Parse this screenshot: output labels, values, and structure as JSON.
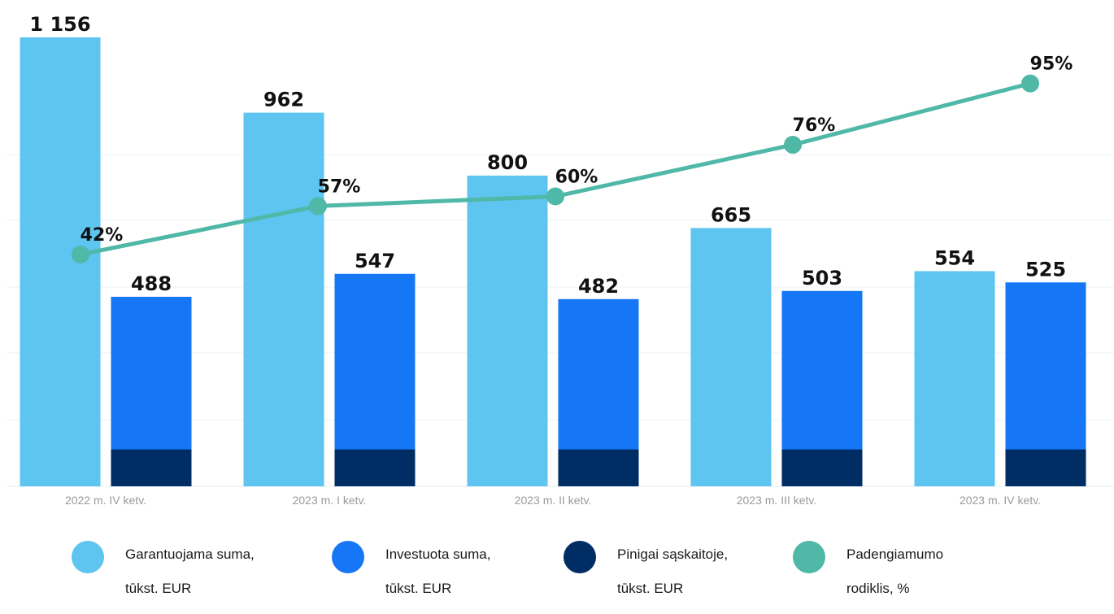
{
  "chart_data": {
    "type": "bar",
    "title": "",
    "xlabel": "",
    "ylabel": "",
    "categories": [
      "2022 m. IV ketv.",
      "2023 m. I ketv.",
      "2023 m. II ketv.",
      "2023 m. III ketv.",
      "2023 m. IV ketv."
    ],
    "ylim": [
      0,
      1160
    ],
    "grid": true,
    "legend_position": "bottom",
    "series": [
      {
        "name": "Garantuojama suma, tūkst. EUR",
        "type": "bar",
        "color": "#5ec4f0",
        "values": [
          1156,
          962,
          800,
          665,
          554
        ],
        "labels": [
          "1 156",
          "962",
          "800",
          "665",
          "554"
        ]
      },
      {
        "name": "Investuota suma, tūkst. EUR",
        "type": "bar",
        "color": "#1577f5",
        "values": [
          488,
          547,
          482,
          503,
          525
        ],
        "labels": [
          "488",
          "547",
          "482",
          "503",
          "525"
        ]
      },
      {
        "name": "Pinigai sąskaitoje, tūkst. EUR",
        "type": "bar",
        "color": "#002d63",
        "values": [
          95,
          95,
          95,
          95,
          95
        ]
      },
      {
        "name": "Padengiamumo rodiklis, %",
        "type": "line",
        "color": "#4fb8a7",
        "values": [
          42,
          57,
          60,
          76,
          95
        ],
        "labels": [
          "42%",
          "57%",
          "60%",
          "76%",
          "95%"
        ]
      }
    ]
  },
  "legend": [
    {
      "line1": "Garantuojama suma,",
      "line2": "tūkst. EUR",
      "color": "#5ec4f0"
    },
    {
      "line1": "Investuota suma,",
      "line2": "tūkst. EUR",
      "color": "#1577f5"
    },
    {
      "line1": "Pinigai sąskaitoje,",
      "line2": "tūkst. EUR",
      "color": "#002d63"
    },
    {
      "line1": "Padengiamumo",
      "line2": "rodiklis, %",
      "color": "#4fb8a7"
    }
  ]
}
